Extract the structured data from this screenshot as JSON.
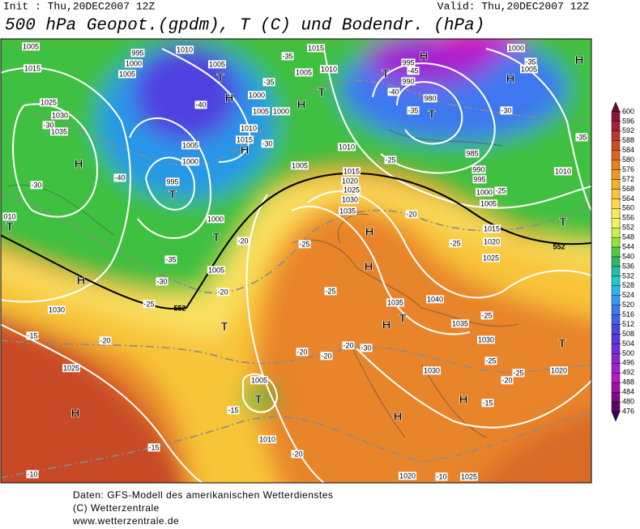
{
  "header": {
    "init": "Init : Thu,20DEC2007 12Z",
    "valid": "Valid: Thu,20DEC2007 12Z",
    "title": "500 hPa Geopot.(gpdm), T (C) und Bodendr. (hPa)"
  },
  "map": {
    "pressure_centers": [
      "T",
      "H",
      "H",
      "T",
      "T",
      "H",
      "H",
      "H",
      "T",
      "H",
      "T",
      "H",
      "T",
      "T",
      "H",
      "T",
      "T",
      "H",
      "H",
      "H",
      "T",
      "H",
      "T",
      "T",
      "H",
      "H"
    ],
    "isobar_labels": [
      "1005",
      "995",
      "1000",
      "1005",
      "1015",
      "1005",
      "1010",
      "1025",
      "1030",
      "1035",
      "1005",
      "1010",
      "1015",
      "995",
      "990",
      "980",
      "1000",
      "1005",
      "1000",
      "1005",
      "1000",
      "1010",
      "1015",
      "1005",
      "1000",
      "995",
      "1005",
      "1010",
      "985",
      "990",
      "995",
      "1000",
      "1005",
      "1010",
      "1015",
      "1020",
      "1025",
      "1030",
      "1035",
      "1015",
      "1020",
      "1025",
      "1000",
      "1005",
      "1030",
      "1025",
      "1005",
      "1010",
      "1035",
      "1040",
      "1035",
      "1030",
      "1030",
      "1020",
      "1020",
      "1025",
      "010"
    ],
    "temperature_labels": [
      "-30",
      "-30",
      "-40",
      "-40",
      "-35",
      "-35",
      "-30",
      "-20",
      "-35",
      "-30",
      "-25",
      "-20",
      "-15",
      "-20",
      "-20",
      "-20",
      "-25",
      "-25",
      "-30",
      "-45",
      "-40",
      "-35",
      "-30",
      "-35",
      "-35",
      "-25",
      "-25",
      "-20",
      "-25",
      "-25",
      "-25",
      "-20",
      "-15",
      "-15",
      "-10",
      "-10",
      "-15",
      "-20",
      "-25",
      "-20"
    ],
    "contour_labels": [
      "552",
      "552"
    ]
  },
  "colorbar": {
    "ticks": [
      600,
      596,
      592,
      588,
      584,
      580,
      576,
      572,
      568,
      564,
      560,
      556,
      552,
      548,
      544,
      540,
      536,
      532,
      528,
      524,
      520,
      516,
      512,
      508,
      504,
      500,
      496,
      492,
      488,
      484,
      480,
      476
    ],
    "colors": [
      "#8b1538",
      "#a8203a",
      "#c0362c",
      "#d24a22",
      "#e06418",
      "#e8801c",
      "#f09a24",
      "#f5b02c",
      "#fac43a",
      "#fcd84a",
      "#fde85a",
      "#f0f060",
      "#c8f050",
      "#96e040",
      "#50c840",
      "#30b860",
      "#20c0a0",
      "#20c8c8",
      "#28b8e8",
      "#3898f0",
      "#3c78f0",
      "#4060e8",
      "#4848e0",
      "#5838e0",
      "#7030e0",
      "#8828d8",
      "#a020d0",
      "#b818c8",
      "#a010a8",
      "#800a88",
      "#5a0668"
    ],
    "top_color": "#6e0b2a",
    "bottom_color": "#3c0450"
  },
  "footer": {
    "lines": [
      "Daten: GFS-Modell des amerikanischen Wetterdienstes",
      "(C) Wetterzentrale",
      "www.wetterzentrale.de"
    ]
  }
}
